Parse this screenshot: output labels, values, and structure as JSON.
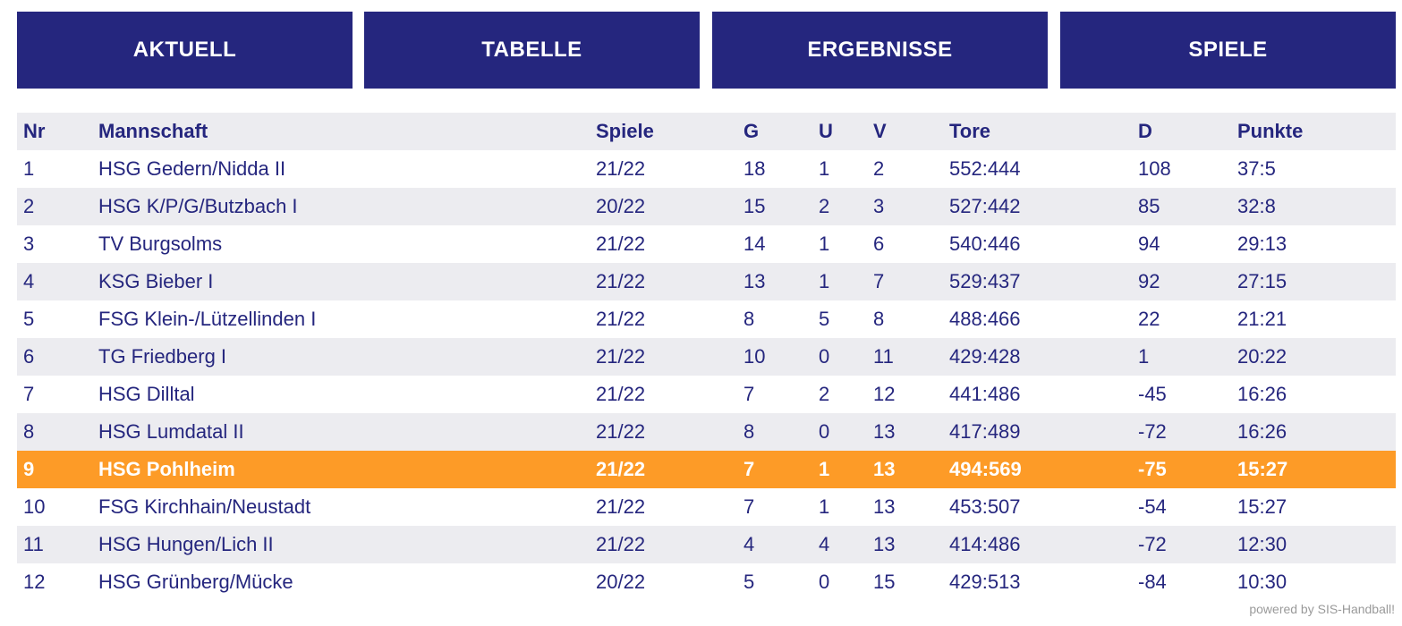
{
  "nav": {
    "buttons": [
      "AKTUELL",
      "TABELLE",
      "ERGEBNISSE",
      "SPIELE"
    ]
  },
  "table": {
    "headers": {
      "nr": "Nr",
      "team": "Mannschaft",
      "spiele": "Spiele",
      "g": "G",
      "u": "U",
      "v": "V",
      "tore": "Tore",
      "d": "D",
      "punkte": "Punkte"
    },
    "rows": [
      {
        "nr": "1",
        "team": "HSG Gedern/Nidda II",
        "spiele": "21/22",
        "g": "18",
        "u": "1",
        "v": "2",
        "tore": "552:444",
        "d": "108",
        "punkte": "37:5"
      },
      {
        "nr": "2",
        "team": "HSG K/P/G/Butzbach I",
        "spiele": "20/22",
        "g": "15",
        "u": "2",
        "v": "3",
        "tore": "527:442",
        "d": "85",
        "punkte": "32:8"
      },
      {
        "nr": "3",
        "team": "TV Burgsolms",
        "spiele": "21/22",
        "g": "14",
        "u": "1",
        "v": "6",
        "tore": "540:446",
        "d": "94",
        "punkte": "29:13"
      },
      {
        "nr": "4",
        "team": "KSG Bieber I",
        "spiele": "21/22",
        "g": "13",
        "u": "1",
        "v": "7",
        "tore": "529:437",
        "d": "92",
        "punkte": "27:15"
      },
      {
        "nr": "5",
        "team": "FSG Klein-/Lützellinden I",
        "spiele": "21/22",
        "g": "8",
        "u": "5",
        "v": "8",
        "tore": "488:466",
        "d": "22",
        "punkte": "21:21"
      },
      {
        "nr": "6",
        "team": "TG Friedberg I",
        "spiele": "21/22",
        "g": "10",
        "u": "0",
        "v": "11",
        "tore": "429:428",
        "d": "1",
        "punkte": "20:22"
      },
      {
        "nr": "7",
        "team": "HSG Dilltal",
        "spiele": "21/22",
        "g": "7",
        "u": "2",
        "v": "12",
        "tore": "441:486",
        "d": "-45",
        "punkte": "16:26"
      },
      {
        "nr": "8",
        "team": "HSG Lumdatal II",
        "spiele": "21/22",
        "g": "8",
        "u": "0",
        "v": "13",
        "tore": "417:489",
        "d": "-72",
        "punkte": "16:26"
      },
      {
        "nr": "9",
        "team": "HSG Pohlheim",
        "spiele": "21/22",
        "g": "7",
        "u": "1",
        "v": "13",
        "tore": "494:569",
        "d": "-75",
        "punkte": "15:27",
        "highlight": true
      },
      {
        "nr": "10",
        "team": "FSG Kirchhain/Neustadt",
        "spiele": "21/22",
        "g": "7",
        "u": "1",
        "v": "13",
        "tore": "453:507",
        "d": "-54",
        "punkte": "15:27"
      },
      {
        "nr": "11",
        "team": "HSG Hungen/Lich II",
        "spiele": "21/22",
        "g": "4",
        "u": "4",
        "v": "13",
        "tore": "414:486",
        "d": "-72",
        "punkte": "12:30"
      },
      {
        "nr": "12",
        "team": "HSG Grünberg/Mücke",
        "spiele": "20/22",
        "g": "5",
        "u": "0",
        "v": "15",
        "tore": "429:513",
        "d": "-84",
        "punkte": "10:30"
      }
    ]
  },
  "footer": {
    "credit": "powered by SIS-Handball!"
  },
  "colors": {
    "primary": "#25267e",
    "highlight": "#fd9b27",
    "row_alt": "#ececf0",
    "footer_text": "#9a9a9a"
  }
}
